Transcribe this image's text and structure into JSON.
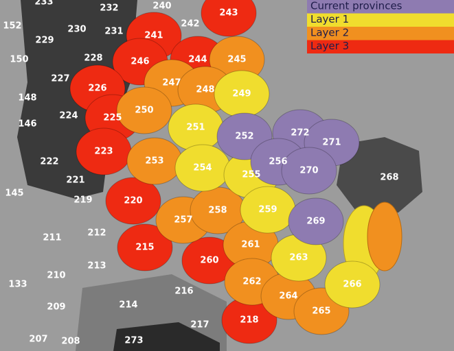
{
  "legend": [
    {
      "label": "Current provinces",
      "color": "#8e7bb1",
      "provinces": [
        "252",
        "272",
        "271",
        "256",
        "270",
        "269"
      ]
    },
    {
      "label": "Layer 1",
      "color": "#f0dd2e",
      "provinces": [
        "249",
        "251",
        "254",
        "255",
        "259",
        "263",
        "266"
      ]
    },
    {
      "label": "Layer 2",
      "color": "#f1901f",
      "provinces": [
        "245",
        "247",
        "248",
        "250",
        "253",
        "257",
        "258",
        "261",
        "262",
        "264",
        "265"
      ]
    },
    {
      "label": "Layer 3",
      "color": "#ee2a12",
      "provinces": [
        "243",
        "241",
        "246",
        "244",
        "226",
        "225",
        "223",
        "220",
        "215",
        "260",
        "218"
      ]
    }
  ],
  "other_provinces": [
    "233",
    "232",
    "240",
    "242",
    "152",
    "230",
    "231",
    "229",
    "150",
    "228",
    "227",
    "148",
    "224",
    "146",
    "222",
    "221",
    "145",
    "219",
    "212",
    "211",
    "213",
    "210",
    "133",
    "216",
    "214",
    "209",
    "217",
    "207",
    "208",
    "273",
    "268"
  ]
}
